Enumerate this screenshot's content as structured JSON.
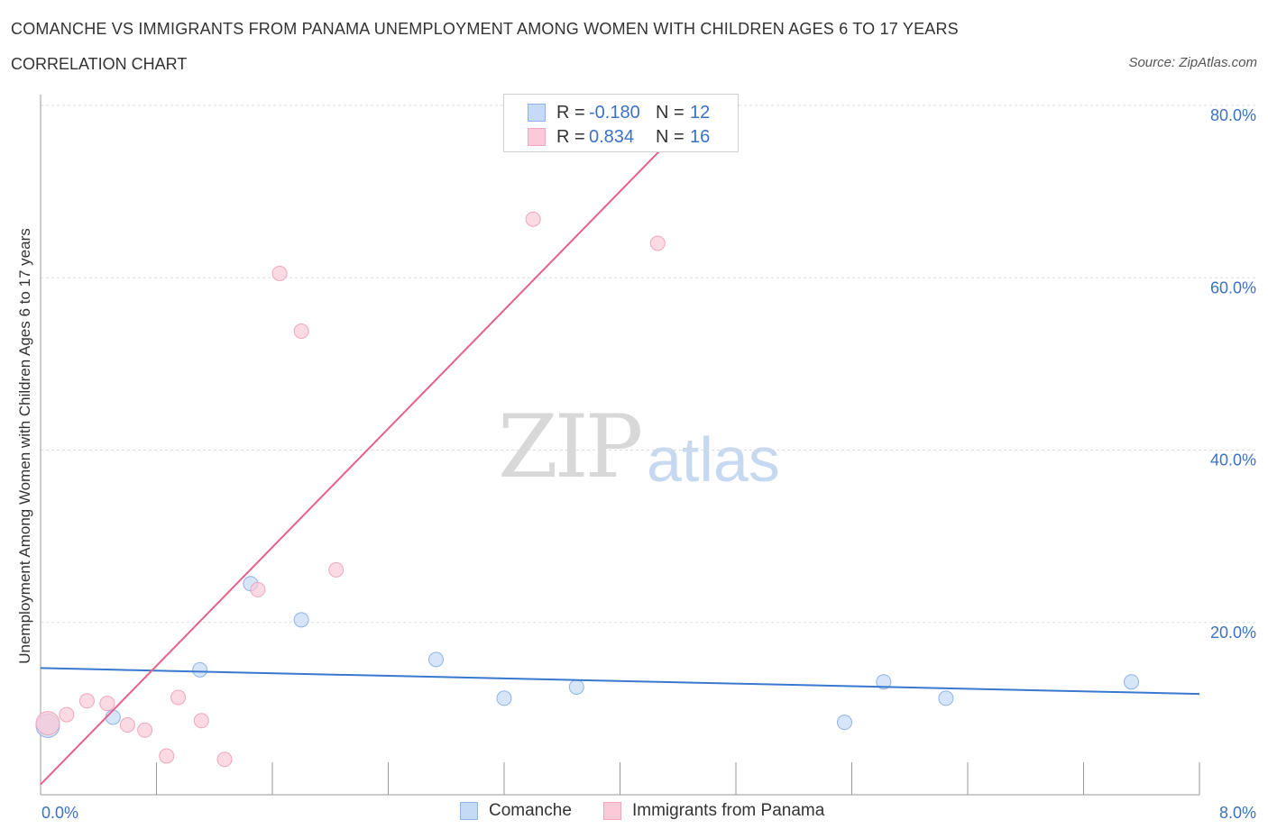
{
  "header": {
    "title": "COMANCHE VS IMMIGRANTS FROM PANAMA UNEMPLOYMENT AMONG WOMEN WITH CHILDREN AGES 6 TO 17 YEARS",
    "subtitle": "CORRELATION CHART",
    "source": "Source: ZipAtlas.com"
  },
  "watermark": {
    "zip": "ZIP",
    "atlas": "atlas"
  },
  "legend_top": {
    "rows": [
      {
        "r_label": "R =",
        "r_value": "-0.180",
        "n_label": "N =",
        "n_value": "12",
        "color": "#a9c8f0"
      },
      {
        "r_label": "R =",
        "r_value": "0.834",
        "n_label": "N =",
        "n_value": "16",
        "color": "#f5b8cb"
      }
    ]
  },
  "legend_bottom": {
    "items": [
      {
        "label": "Comanche",
        "color": "#a9c8f0"
      },
      {
        "label": "Immigrants from Panama",
        "color": "#f5b8cb"
      }
    ]
  },
  "chart_data": {
    "type": "scatter",
    "title": "COMANCHE VS IMMIGRANTS FROM PANAMA UNEMPLOYMENT AMONG WOMEN WITH CHILDREN AGES 6 TO 17 YEARS",
    "xlabel": "",
    "ylabel": "Unemployment Among Women with Children Ages 6 to 17 years",
    "xlim": [
      0,
      8
    ],
    "ylim": [
      0,
      80
    ],
    "x_tick_labels": {
      "left": "0.0%",
      "right": "8.0%"
    },
    "y_ticks": [
      {
        "value": 20,
        "label": "20.0%"
      },
      {
        "value": 40,
        "label": "40.0%"
      },
      {
        "value": 60,
        "label": "60.0%"
      },
      {
        "value": 80,
        "label": "80.0%"
      }
    ],
    "series": [
      {
        "name": "Comanche",
        "color": "#3a78d0",
        "fill": "#c5daf5",
        "points": [
          {
            "x": 0.05,
            "y": 8.0,
            "big": true
          },
          {
            "x": 0.5,
            "y": 9.0
          },
          {
            "x": 1.1,
            "y": 14.5
          },
          {
            "x": 1.45,
            "y": 24.5
          },
          {
            "x": 1.8,
            "y": 20.3
          },
          {
            "x": 2.73,
            "y": 15.7
          },
          {
            "x": 3.2,
            "y": 11.2
          },
          {
            "x": 3.7,
            "y": 12.5
          },
          {
            "x": 5.55,
            "y": 8.4
          },
          {
            "x": 5.82,
            "y": 13.1
          },
          {
            "x": 6.25,
            "y": 11.2
          },
          {
            "x": 7.53,
            "y": 13.1
          }
        ],
        "trend": {
          "x1": 0,
          "y1": 14.7,
          "x2": 8,
          "y2": 11.7
        }
      },
      {
        "name": "Immigrants from Panama",
        "color": "#e8608a",
        "fill": "#f9cad8",
        "points": [
          {
            "x": 0.05,
            "y": 8.3,
            "big": true
          },
          {
            "x": 0.18,
            "y": 9.3
          },
          {
            "x": 0.32,
            "y": 10.9
          },
          {
            "x": 0.46,
            "y": 10.6
          },
          {
            "x": 0.6,
            "y": 8.1
          },
          {
            "x": 0.72,
            "y": 7.5
          },
          {
            "x": 0.87,
            "y": 4.5
          },
          {
            "x": 0.95,
            "y": 11.3
          },
          {
            "x": 1.11,
            "y": 8.6
          },
          {
            "x": 1.27,
            "y": 4.1
          },
          {
            "x": 1.5,
            "y": 23.8
          },
          {
            "x": 1.65,
            "y": 60.5
          },
          {
            "x": 1.8,
            "y": 53.8
          },
          {
            "x": 2.04,
            "y": 26.1
          },
          {
            "x": 3.4,
            "y": 66.8
          },
          {
            "x": 4.26,
            "y": 64.0
          }
        ],
        "trend": {
          "x1": 0,
          "y1": 1.2,
          "x2": 4.58,
          "y2": 80.0
        }
      }
    ]
  }
}
